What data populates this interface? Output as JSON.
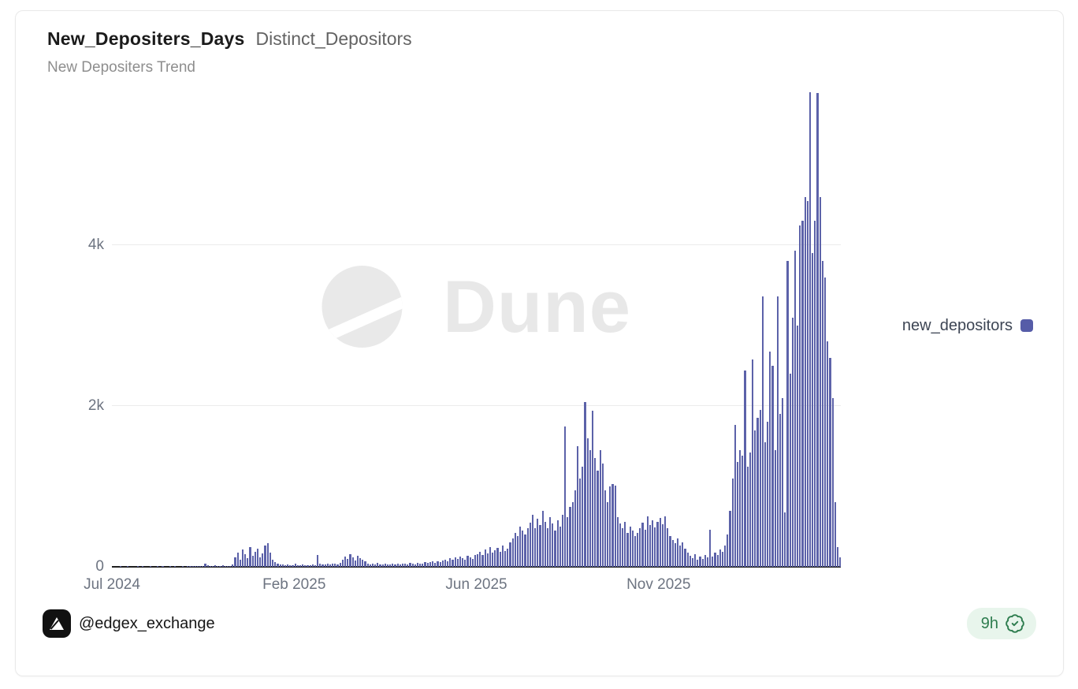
{
  "card": {
    "title": "New_Depositers_Days",
    "title_secondary": "Distinct_Depositors",
    "subtitle": "New Depositers Trend"
  },
  "legend": {
    "label": "new_depositors",
    "color": "#565ca8"
  },
  "watermark": {
    "text": "Dune"
  },
  "footer": {
    "handle": "@edgex_exchange",
    "age": "9h"
  },
  "chart_data": {
    "type": "bar",
    "title": "New Depositers Trend",
    "series_name": "new_depositors",
    "bar_color": "#5c62a9",
    "ylim": [
      0,
      6000
    ],
    "grid": "horizontal",
    "legend_position": "right-middle",
    "y_ticks": [
      {
        "label": "0",
        "value": 0
      },
      {
        "label": "2k",
        "value": 2000
      },
      {
        "label": "4k",
        "value": 4000
      }
    ],
    "x_ticks": [
      {
        "label": "Jul 2024",
        "pos": 0.0
      },
      {
        "label": "Feb 2025",
        "pos": 0.25
      },
      {
        "label": "Jun 2025",
        "pos": 0.5
      },
      {
        "label": "Nov 2025",
        "pos": 0.75
      }
    ],
    "x_range_note": "daily new depositors, Jul 2024 through early Feb 2026",
    "values": [
      0,
      0,
      0,
      2,
      0,
      0,
      3,
      0,
      0,
      0,
      2,
      0,
      4,
      0,
      0,
      3,
      0,
      0,
      5,
      0,
      2,
      0,
      0,
      4,
      0,
      3,
      0,
      0,
      6,
      0,
      4,
      8,
      10,
      6,
      14,
      8,
      12,
      40,
      15,
      10,
      8,
      20,
      12,
      10,
      18,
      14,
      10,
      12,
      25,
      120,
      180,
      90,
      220,
      160,
      110,
      250,
      140,
      190,
      230,
      120,
      170,
      260,
      290,
      180,
      90,
      60,
      40,
      30,
      25,
      20,
      30,
      18,
      22,
      35,
      20,
      15,
      28,
      20,
      24,
      18,
      30,
      22,
      150,
      35,
      25,
      30,
      40,
      28,
      35,
      35,
      30,
      45,
      90,
      130,
      100,
      160,
      120,
      80,
      140,
      110,
      90,
      70,
      40,
      30,
      35,
      25,
      45,
      30,
      28,
      38,
      26,
      32,
      40,
      28,
      35,
      30,
      42,
      36,
      30,
      45,
      38,
      32,
      48,
      40,
      35,
      55,
      48,
      60,
      70,
      52,
      65,
      60,
      75,
      90,
      70,
      110,
      85,
      120,
      95,
      130,
      105,
      90,
      140,
      115,
      100,
      150,
      160,
      190,
      150,
      220,
      170,
      250,
      180,
      210,
      240,
      190,
      260,
      200,
      230,
      300,
      350,
      420,
      380,
      500,
      450,
      400,
      480,
      550,
      650,
      480,
      600,
      520,
      700,
      560,
      480,
      620,
      540,
      450,
      580,
      500,
      650,
      1750,
      620,
      750,
      800,
      950,
      1500,
      1100,
      1250,
      2050,
      1600,
      1450,
      1940,
      1350,
      1200,
      1450,
      1280,
      950,
      800,
      1000,
      1030,
      1010,
      620,
      540,
      480,
      560,
      420,
      500,
      450,
      380,
      420,
      480,
      550,
      460,
      630,
      520,
      580,
      490,
      560,
      610,
      530,
      630,
      480,
      380,
      330,
      290,
      350,
      260,
      300,
      230,
      180,
      140,
      110,
      160,
      90,
      130,
      100,
      150,
      120,
      460,
      130,
      180,
      150,
      220,
      190,
      260,
      400,
      700,
      1100,
      1760,
      1300,
      1450,
      1380,
      2440,
      1250,
      1420,
      2580,
      1700,
      1850,
      1950,
      3360,
      1550,
      1800,
      2680,
      2500,
      1450,
      3360,
      1900,
      2100,
      680,
      3800,
      2400,
      3100,
      3930,
      3000,
      4250,
      4300,
      4600,
      4550,
      5900,
      3900,
      4300,
      5890,
      4600,
      3800,
      3600,
      2800,
      2600,
      2100,
      800,
      250,
      120
    ]
  }
}
